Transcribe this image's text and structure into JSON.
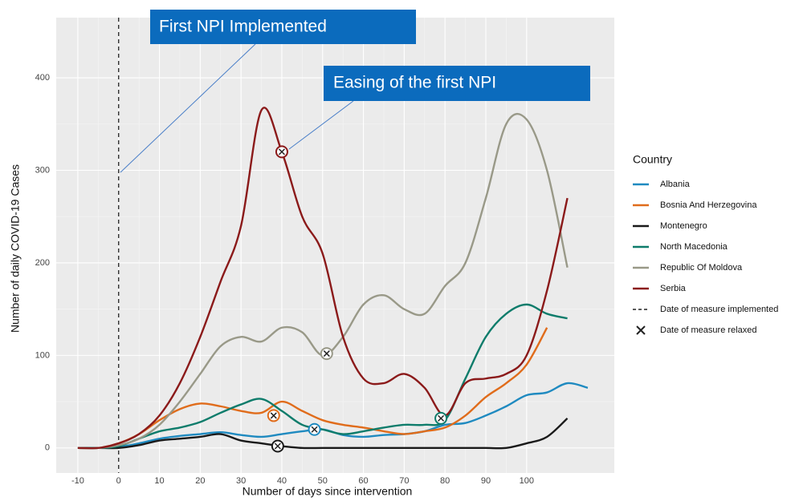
{
  "chart_data": {
    "type": "line",
    "annotations": [
      "First NPI Implemented",
      "Easing of the first NPI"
    ],
    "x_label": "Number of days since intervention",
    "y_label": "Number of daily COVID-19 Cases",
    "legend_title": "Country",
    "implemented_label": "Date of measure implemented",
    "relaxed_label": "Date of measure relaxed",
    "implemented_x": 0,
    "x": [
      -10,
      -5,
      0,
      5,
      10,
      15,
      20,
      25,
      30,
      35,
      40,
      45,
      50,
      55,
      60,
      65,
      70,
      75,
      80,
      85,
      90,
      95,
      100,
      105,
      110,
      115
    ],
    "series": [
      {
        "name": "Albania",
        "color": "#1f8ac0",
        "values": [
          0,
          0,
          1,
          5,
          10,
          13,
          15,
          17,
          14,
          12,
          15,
          18,
          20,
          14,
          12,
          14,
          15,
          18,
          25,
          27,
          35,
          45,
          57,
          60,
          70,
          65
        ],
        "relaxed": [
          [
            48,
            20
          ]
        ]
      },
      {
        "name": "Bosnia And Herzegovina",
        "color": "#e06c1b",
        "values": [
          0,
          0,
          5,
          15,
          30,
          42,
          48,
          45,
          40,
          38,
          50,
          40,
          30,
          25,
          22,
          18,
          15,
          18,
          22,
          35,
          55,
          70,
          90,
          130,
          null,
          null
        ],
        "relaxed": [
          [
            38,
            35
          ]
        ]
      },
      {
        "name": "Montenegro",
        "color": "#1a1a1a",
        "values": [
          0,
          0,
          0,
          3,
          8,
          10,
          12,
          15,
          8,
          5,
          2,
          0,
          0,
          0,
          0,
          0,
          0,
          0,
          0,
          0,
          0,
          0,
          5,
          12,
          32,
          null
        ],
        "relaxed": [
          [
            39,
            2
          ]
        ]
      },
      {
        "name": "North Macedonia",
        "color": "#0e7c6b",
        "values": [
          0,
          0,
          2,
          10,
          18,
          22,
          28,
          38,
          47,
          53,
          40,
          25,
          20,
          15,
          18,
          22,
          25,
          25,
          30,
          75,
          120,
          145,
          155,
          145,
          140,
          null
        ],
        "relaxed": [
          [
            79,
            32
          ]
        ]
      },
      {
        "name": "Republic Of Moldova",
        "color": "#999988",
        "values": [
          0,
          0,
          3,
          10,
          25,
          50,
          80,
          110,
          120,
          115,
          130,
          125,
          100,
          120,
          155,
          165,
          150,
          145,
          175,
          200,
          270,
          350,
          355,
          300,
          195,
          null
        ],
        "relaxed": [
          [
            51,
            102
          ]
        ]
      },
      {
        "name": "Serbia",
        "color": "#8b1a1a",
        "values": [
          0,
          0,
          5,
          15,
          35,
          70,
          120,
          180,
          240,
          365,
          320,
          250,
          210,
          120,
          75,
          70,
          80,
          65,
          35,
          70,
          75,
          80,
          100,
          170,
          270,
          null
        ],
        "relaxed": [
          [
            40,
            320
          ]
        ]
      }
    ],
    "xlim": [
      -15.3,
      121.5
    ],
    "ylim": [
      -27,
      465
    ],
    "xticks": [
      -10,
      0,
      10,
      20,
      30,
      40,
      50,
      60,
      70,
      80,
      90,
      100
    ],
    "yticks": [
      0,
      100,
      200,
      300,
      400
    ],
    "grid": true
  }
}
